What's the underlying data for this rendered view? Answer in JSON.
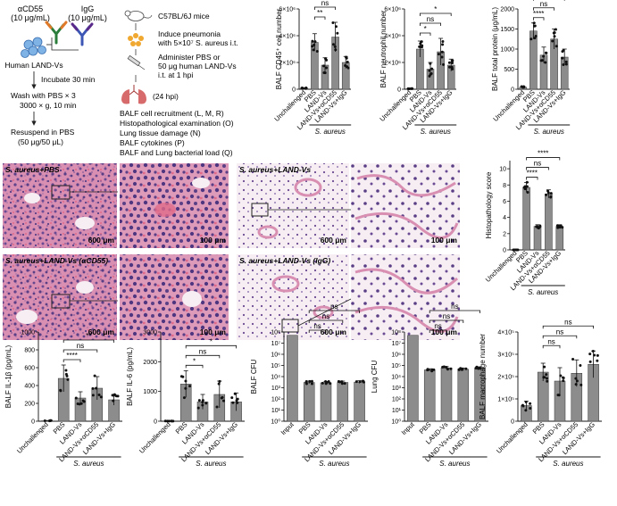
{
  "schematic": {
    "acd55_line1": "αCD55",
    "acd55_line2": "(10 μg/mL)",
    "igg_line1": "IgG",
    "igg_line2": "(10 μg/mL)",
    "human_land_vs": "Human LAND-Vs",
    "incubate": "Incubate 30 min",
    "wash_line1": "Wash with PBS × 3",
    "wash_line2": "3000 × g, 10 min",
    "resuspend_line1": "Resuspend in PBS",
    "resuspend_line2": "(50 μg/50 μL)",
    "mice": "C57BL/6J mice",
    "induce_line1": "Induce pneumonia",
    "induce_line2": "with 5×10⁷ S. aureus i.t.",
    "administer_line1": "Administer PBS or",
    "administer_line2": "50 μg human LAND-Vs",
    "administer_line3": "i.t. at 1 hpi",
    "hpi": "(24 hpi)",
    "bullets": [
      "BALF cell recruitment (L, M, R)",
      "Histopathological examination (O)",
      "Lung tissue damage (N)",
      "BALF cytokines (P)",
      "BALF and Lung bacterial load (Q)"
    ]
  },
  "common": {
    "groups_5": [
      "Unchallenged",
      "PBS",
      "LAND-Vs",
      "LAND-Vs+αCD55",
      "LAND-Vs+IgG"
    ],
    "groups_cfu": [
      "Input",
      "PBS",
      "LAND-Vs",
      "LAND-Vs+αCD55",
      "LAND-Vs+IgG"
    ],
    "s_aureus": "S. aureus",
    "ns": "ns"
  },
  "histology": {
    "labels": [
      "S. aureus+PBS",
      "S. aureus+LAND-Vs",
      "S. aureus+LAND-Vs (αCD55)",
      "S. aureus+LAND-Vs (IgG)"
    ],
    "scale_low": "600 μm",
    "scale_high": "100 μm",
    "colors": {
      "tissue": "#d98fb1",
      "nuclei": "#5b3f86",
      "space": "#f6eef3",
      "rbc": "#e06a8a"
    }
  },
  "chart_data": [
    {
      "id": "cd45",
      "type": "bar",
      "ylabel": "BALF CD45⁺ cell number",
      "categories": [
        "Unchallenged",
        "PBS",
        "LAND-Vs",
        "LAND-Vs+αCD55",
        "LAND-Vs+IgG"
      ],
      "values": [
        80000,
        3500000,
        1800000,
        3900000,
        2000000
      ],
      "errors": [
        30000,
        650000,
        550000,
        1100000,
        450000
      ],
      "yticks": [
        0,
        2000000,
        4000000,
        6000000
      ],
      "yticklabels": [
        "0",
        "2×10⁶",
        "4×10⁶",
        "6×10⁶"
      ],
      "ylim": [
        0,
        6000000
      ],
      "significance": [
        {
          "from": 1,
          "to": 2,
          "label": "**"
        },
        {
          "from": 1,
          "to": 3,
          "label": "ns"
        },
        {
          "from": 1,
          "to": 4,
          "label": "*"
        }
      ]
    },
    {
      "id": "neutro",
      "type": "bar",
      "ylabel": "BALF neutrophil number",
      "categories": [
        "Unchallenged",
        "PBS",
        "LAND-Vs",
        "LAND-Vs+αCD55",
        "LAND-Vs+IgG"
      ],
      "values": [
        30000,
        3000000,
        1500000,
        2800000,
        1800000
      ],
      "errors": [
        20000,
        600000,
        500000,
        1000000,
        450000
      ],
      "yticks": [
        0,
        2000000,
        4000000,
        6000000
      ],
      "yticklabels": [
        "0",
        "2×10⁶",
        "4×10⁶",
        "6×10⁶"
      ],
      "ylim": [
        0,
        6000000
      ],
      "significance": [
        {
          "from": 1,
          "to": 2,
          "label": "*"
        },
        {
          "from": 1,
          "to": 3,
          "label": "ns"
        },
        {
          "from": 1,
          "to": 4,
          "label": "*"
        }
      ]
    },
    {
      "id": "protein",
      "type": "bar",
      "ylabel": "BALF total protein (μg/mL)",
      "categories": [
        "Unchallenged",
        "PBS",
        "LAND-Vs",
        "LAND-Vs+αCD55",
        "LAND-Vs+IgG"
      ],
      "values": [
        50,
        1450,
        850,
        1250,
        800
      ],
      "errors": [
        20,
        200,
        200,
        250,
        200
      ],
      "yticks": [
        0,
        500,
        1000,
        1500,
        2000
      ],
      "yticklabels": [
        "0",
        "500",
        "1000",
        "1500",
        "2000"
      ],
      "ylim": [
        0,
        2000
      ],
      "significance": [
        {
          "from": 1,
          "to": 2,
          "label": "****"
        },
        {
          "from": 1,
          "to": 3,
          "label": "ns"
        },
        {
          "from": 1,
          "to": 4,
          "label": "****"
        }
      ]
    },
    {
      "id": "histo",
      "type": "bar",
      "ylabel": "Histopathology score",
      "categories": [
        "Unchallenged",
        "PBS",
        "LAND-Vs",
        "LAND-Vs+αCD55",
        "LAND-Vs+IgG"
      ],
      "values": [
        0,
        7.7,
        2.9,
        6.9,
        2.9
      ],
      "errors": [
        0,
        0.6,
        0.2,
        0.5,
        0.2
      ],
      "yticks": [
        0,
        2,
        4,
        6,
        8,
        10
      ],
      "yticklabels": [
        "0",
        "2",
        "4",
        "6",
        "8",
        "10"
      ],
      "ylim": [
        0,
        11
      ],
      "significance": [
        {
          "from": 1,
          "to": 2,
          "label": "****"
        },
        {
          "from": 1,
          "to": 3,
          "label": "ns"
        },
        {
          "from": 1,
          "to": 4,
          "label": "****"
        }
      ]
    },
    {
      "id": "il1b",
      "type": "bar",
      "ylabel": "BALF IL-1β (pg/mL)",
      "categories": [
        "Unchallenged",
        "PBS",
        "LAND-Vs",
        "LAND-Vs+αCD55",
        "LAND-Vs+IgG"
      ],
      "values": [
        5,
        480,
        260,
        370,
        240
      ],
      "errors": [
        3,
        150,
        70,
        130,
        60
      ],
      "yticks": [
        0,
        200,
        400,
        600,
        800,
        1000
      ],
      "yticklabels": [
        "0",
        "200",
        "400",
        "600",
        "800",
        "1000"
      ],
      "ylim": [
        0,
        1000
      ],
      "significance": [
        {
          "from": 1,
          "to": 2,
          "label": "****"
        },
        {
          "from": 1,
          "to": 3,
          "label": "ns"
        },
        {
          "from": 1,
          "to": 4,
          "label": "**"
        }
      ]
    },
    {
      "id": "il6",
      "type": "bar",
      "ylabel": "BALF IL-6 (pg/mL)",
      "categories": [
        "Unchallenged",
        "PBS",
        "LAND-Vs",
        "LAND-Vs+αCD55",
        "LAND-Vs+IgG"
      ],
      "values": [
        5,
        1250,
        650,
        900,
        650
      ],
      "errors": [
        3,
        450,
        250,
        450,
        300
      ],
      "yticks": [
        0,
        1000,
        2000,
        3000
      ],
      "yticklabels": [
        "0",
        "1000",
        "2000",
        "3000"
      ],
      "ylim": [
        0,
        3000
      ],
      "significance": [
        {
          "from": 1,
          "to": 2,
          "label": "*"
        },
        {
          "from": 1,
          "to": 3,
          "label": "ns"
        },
        {
          "from": 1,
          "to": 4,
          "label": "*"
        }
      ]
    },
    {
      "id": "balfcfu",
      "type": "bar",
      "log": true,
      "ylabel": "BALF CFU",
      "categories": [
        "Input",
        "PBS",
        "LAND-Vs",
        "LAND-Vs+αCD55",
        "LAND-Vs+IgG"
      ],
      "values": [
        50000000,
        3000,
        2800,
        3000,
        3200
      ],
      "errors": [
        0,
        0.12,
        0.12,
        0.12,
        0.12
      ],
      "yticks": [
        0,
        1,
        2,
        3,
        4,
        5,
        6,
        7,
        8
      ],
      "yticklabels": [
        "10⁰",
        "10¹",
        "10²",
        "10³",
        "10⁴",
        "10⁵",
        "10⁶",
        "10⁷",
        "10⁸"
      ],
      "ylim": [
        0,
        8
      ],
      "significance": [
        {
          "from": 1,
          "to": 2,
          "label": "ns"
        },
        {
          "from": 1,
          "to": 3,
          "label": "ns"
        },
        {
          "from": 1,
          "to": 4,
          "label": "ns"
        }
      ]
    },
    {
      "id": "lungcfu",
      "type": "bar",
      "log": true,
      "ylabel": "Lung CFU",
      "categories": [
        "Input",
        "PBS",
        "LAND-Vs",
        "LAND-Vs+αCD55",
        "LAND-Vs+IgG"
      ],
      "values": [
        50000000,
        40000,
        60000,
        45000,
        60000
      ],
      "errors": [
        0,
        0.1,
        0.12,
        0.1,
        0.1
      ],
      "yticks": [
        0,
        1,
        2,
        3,
        4,
        5,
        6,
        7,
        8
      ],
      "yticklabels": [
        "10⁰",
        "10¹",
        "10²",
        "10³",
        "10⁴",
        "10⁵",
        "10⁶",
        "10⁷",
        "10⁸"
      ],
      "ylim": [
        0,
        8
      ],
      "significance": [
        {
          "from": 1,
          "to": 2,
          "label": "ns"
        },
        {
          "from": 1,
          "to": 3,
          "label": "ns"
        },
        {
          "from": 1,
          "to": 4,
          "label": "ns"
        }
      ]
    },
    {
      "id": "macro",
      "type": "bar",
      "ylabel": "BALF macrophage number",
      "categories": [
        "Unchallenged",
        "PBS",
        "LAND-Vs",
        "LAND-Vs+αCD55",
        "LAND-Vs+IgG"
      ],
      "values": [
        70000,
        220000,
        180000,
        215000,
        255000
      ],
      "errors": [
        20000,
        40000,
        60000,
        60000,
        60000
      ],
      "yticks": [
        0,
        100000,
        200000,
        300000,
        400000
      ],
      "yticklabels": [
        "0",
        "1×10⁵",
        "2×10⁵",
        "3×10⁵",
        "4×10⁵"
      ],
      "ylim": [
        0,
        400000
      ],
      "significance": [
        {
          "from": 1,
          "to": 2,
          "label": "ns"
        },
        {
          "from": 1,
          "to": 3,
          "label": "ns"
        },
        {
          "from": 1,
          "to": 4,
          "label": "ns"
        }
      ]
    }
  ]
}
